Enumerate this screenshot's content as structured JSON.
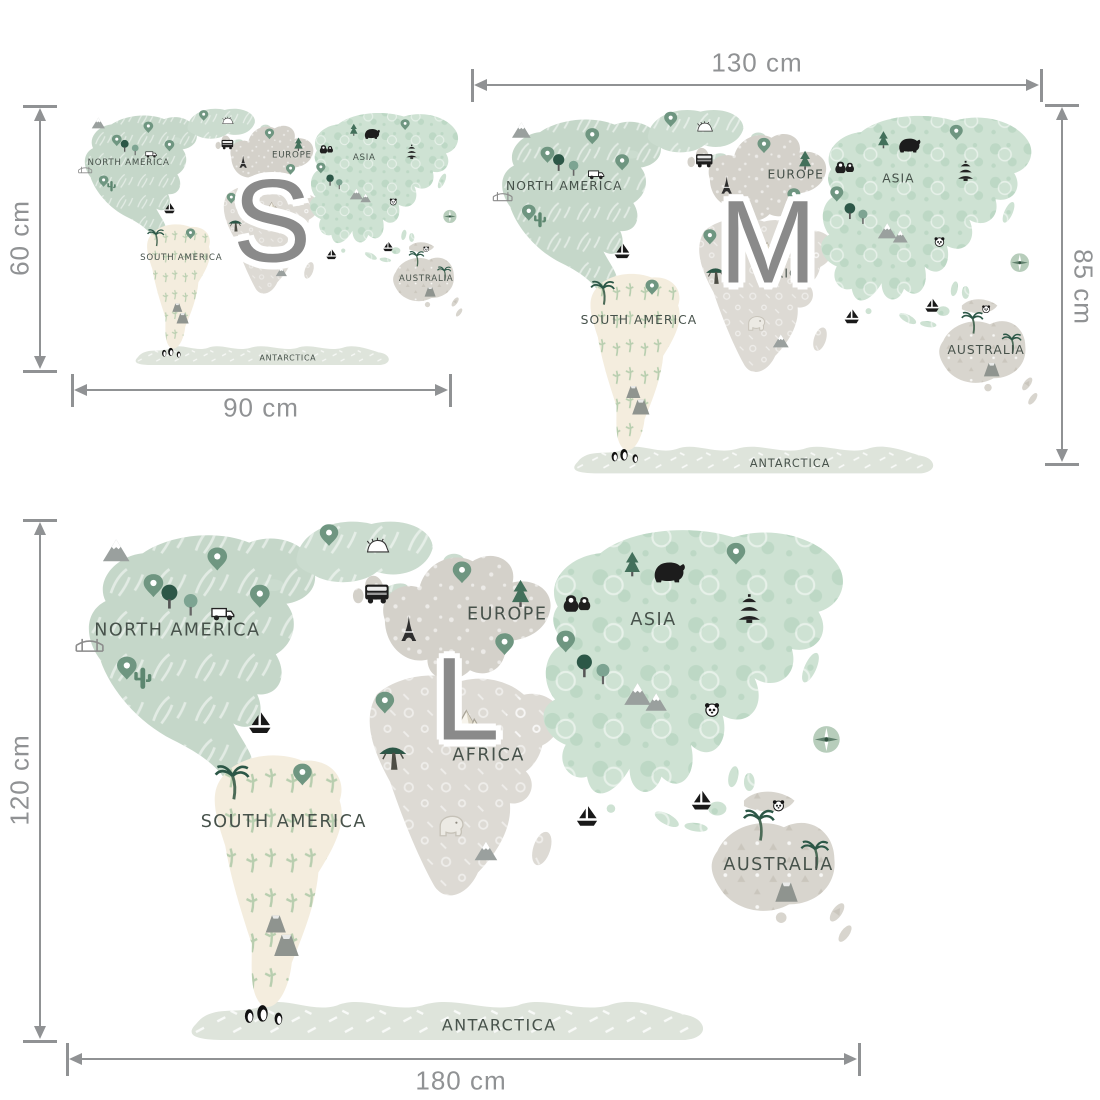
{
  "page": {
    "description": "World map wall sticker size comparison chart",
    "background": "#ffffff"
  },
  "sizes": [
    {
      "letter": "S",
      "width_label": "90 cm",
      "height_label": "60 cm"
    },
    {
      "letter": "M",
      "width_label": "130 cm",
      "height_label": "85 cm"
    },
    {
      "letter": "L",
      "width_label": "180 cm",
      "height_label": "120 cm"
    }
  ],
  "map_labels": {
    "north_america": "NORTH AMERICA",
    "south_america": "SOUTH AMERICA",
    "europe": "EUROPE",
    "asia": "ASIA",
    "africa": "AFRICA",
    "australia": "AUSTRALIA",
    "antarctica": "ANTARCTICA"
  },
  "icons": {
    "location-pin-icon": "teardrop map pin",
    "tree-icon": "round deciduous tree",
    "pine-tree-icon": "conifer triangle tree",
    "palm-tree-icon": "palm with fronds",
    "acacia-tree-icon": "flat-top savanna tree",
    "cactus-icon": "saguaro cactus",
    "mountain-icon": "snow-capped peak triangle",
    "volcano-icon": "trapezoid volcano",
    "sailboat-icon": "black sailboat",
    "truck-icon": "pickup truck",
    "bridge-icon": "suspension bridge",
    "bus-icon": "double-decker bus",
    "eiffel-tower-icon": "eiffel tower",
    "pyramid-icon": "egyptian pyramids",
    "elephant-icon": "white elephant",
    "nesting-doll-icon": "matryoshka doll",
    "bear-icon": "black bear silhouette",
    "pagoda-icon": "asian pagoda",
    "panda-icon": "panda face",
    "penguin-icon": "penguin",
    "compass-rose-icon": "compass rose",
    "hedgehog-icon": "hedgehog"
  },
  "colors": {
    "background": "#ffffff",
    "north_america": "#c5d7c9",
    "greenland": "#cbdccf",
    "asia": "#cee2d3",
    "europe": "#d4d1ca",
    "africa": "#dddad4",
    "south_america": "#f4edde",
    "australia": "#d8d5ce",
    "antarctica": "#dee4db",
    "letter": "#8a8a8a",
    "dimension_line": "#909294",
    "continent_label": "#47524b"
  }
}
